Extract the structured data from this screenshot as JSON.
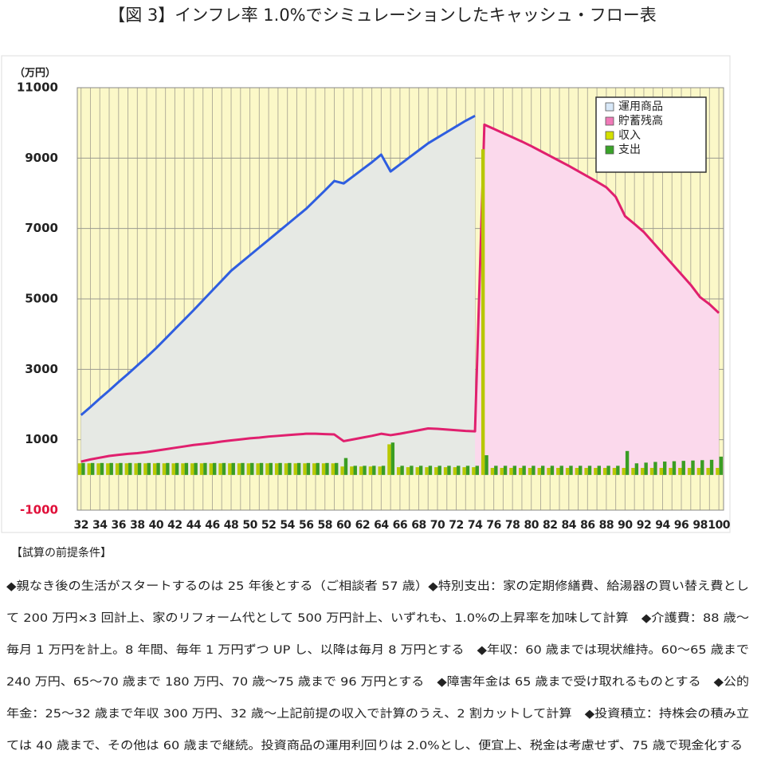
{
  "chart_data": {
    "type": "cashflow",
    "title": "【図 3】インフレ率 1.0%でシミュレーションしたキャッシュ・フロー表",
    "y_unit": "（万円）",
    "x": [
      32,
      33,
      34,
      35,
      36,
      37,
      38,
      39,
      40,
      41,
      42,
      43,
      44,
      45,
      46,
      47,
      48,
      49,
      50,
      51,
      52,
      53,
      54,
      55,
      56,
      57,
      58,
      59,
      60,
      61,
      62,
      63,
      64,
      65,
      66,
      67,
      68,
      69,
      70,
      71,
      72,
      73,
      74,
      75,
      76,
      77,
      78,
      79,
      80,
      81,
      82,
      83,
      84,
      85,
      86,
      87,
      88,
      89,
      90,
      91,
      92,
      93,
      94,
      95,
      96,
      97,
      98,
      99,
      100
    ],
    "xlim": [
      31.6,
      100.5
    ],
    "xticks": [
      32,
      34,
      36,
      38,
      40,
      42,
      44,
      46,
      48,
      50,
      52,
      54,
      56,
      58,
      60,
      62,
      64,
      66,
      68,
      70,
      72,
      74,
      76,
      78,
      80,
      82,
      84,
      86,
      88,
      90,
      92,
      94,
      96,
      98,
      100
    ],
    "ylim": [
      -1000,
      11000
    ],
    "yticks": [
      -1000,
      1000,
      3000,
      5000,
      7000,
      9000,
      11000
    ],
    "negative_tick_color": "#e0103a",
    "grid": true,
    "legend": "upper right",
    "series": [
      {
        "name": "運用商品",
        "kind": "line",
        "color": "#2f5ee0",
        "area_color": "#e6e9e4",
        "swatch": "#d8e8f8",
        "values": [
          1700,
          1930,
          2170,
          2400,
          2640,
          2870,
          3110,
          3350,
          3600,
          3870,
          4140,
          4410,
          4680,
          4960,
          5240,
          5520,
          5800,
          6020,
          6240,
          6460,
          6680,
          6900,
          7120,
          7340,
          7560,
          7820,
          8080,
          8350,
          8280,
          8480,
          8680,
          8880,
          9100,
          8620,
          8820,
          9020,
          9220,
          9420,
          9580,
          9740,
          9900,
          10060,
          10200,
          null,
          null,
          null,
          null,
          null,
          null,
          null,
          null,
          null,
          null,
          null,
          null,
          null,
          null,
          null,
          null,
          null,
          null,
          null,
          null,
          null,
          null,
          null,
          null,
          null,
          null
        ]
      },
      {
        "name": "貯蓄残高",
        "kind": "line",
        "color": "#e0206e",
        "area_color": "#fbd9ec",
        "swatch": "#f07ab8",
        "values": [
          380,
          440,
          490,
          540,
          570,
          600,
          620,
          650,
          690,
          730,
          770,
          810,
          850,
          880,
          910,
          950,
          980,
          1010,
          1040,
          1060,
          1090,
          1110,
          1130,
          1150,
          1170,
          1170,
          1160,
          1150,
          960,
          1010,
          1060,
          1110,
          1170,
          1130,
          1170,
          1220,
          1270,
          1320,
          1310,
          1290,
          1270,
          1250,
          1240,
          9950,
          9830,
          9710,
          9590,
          9470,
          9340,
          9200,
          9060,
          8920,
          8780,
          8630,
          8480,
          8330,
          8170,
          7900,
          7350,
          7130,
          6900,
          6600,
          6300,
          6000,
          5700,
          5400,
          5050,
          4850,
          4600
        ]
      },
      {
        "name": "収入",
        "kind": "bar",
        "color": "#b8c800",
        "swatch": "#d4e000",
        "values": [
          330,
          330,
          330,
          330,
          330,
          330,
          330,
          330,
          330,
          330,
          330,
          330,
          330,
          330,
          330,
          330,
          330,
          330,
          330,
          330,
          330,
          330,
          330,
          330,
          330,
          330,
          330,
          330,
          240,
          240,
          240,
          240,
          240,
          870,
          220,
          220,
          220,
          220,
          220,
          220,
          220,
          220,
          220,
          9250,
          200,
          200,
          200,
          200,
          200,
          200,
          200,
          200,
          200,
          200,
          200,
          200,
          200,
          200,
          200,
          200,
          200,
          200,
          200,
          200,
          200,
          200,
          200,
          200,
          200
        ]
      },
      {
        "name": "支出",
        "kind": "bar",
        "color": "#3a9d23",
        "swatch": "#3aa329",
        "values": [
          340,
          340,
          340,
          340,
          340,
          340,
          340,
          340,
          340,
          340,
          340,
          340,
          340,
          340,
          340,
          340,
          340,
          340,
          340,
          340,
          340,
          340,
          340,
          340,
          340,
          340,
          340,
          340,
          480,
          260,
          260,
          260,
          260,
          920,
          260,
          260,
          260,
          260,
          260,
          260,
          260,
          260,
          260,
          560,
          260,
          260,
          260,
          260,
          260,
          260,
          260,
          260,
          260,
          260,
          260,
          260,
          260,
          260,
          680,
          330,
          350,
          370,
          380,
          390,
          400,
          410,
          420,
          430,
          520
        ]
      }
    ]
  },
  "notes": {
    "heading": "【試算の前提条件】",
    "lines": [
      "◆親なき後の生活がスタートするのは 25 年後とする（ご相談者 57 歳）◆特別支出：家の定期修繕費、給湯器の買い替え費とし",
      "て 200 万円×3 回計上、家のリフォーム代として 500 万円計上、いずれも、1.0%の上昇率を加味して計算　◆介護費：88 歳～",
      "毎月 1 万円を計上。8 年間、毎年 1 万円ずつ UP し、以降は毎月 8 万円とする　◆年収：60 歳までは現状維持。60～65 歳まで",
      "240 万円、65～70 歳まで 180 万円、70 歳～75 歳まで 96 万円とする　◆障害年金は 65 歳まで受け取れるものとする　◆公的",
      "年金：25～32 歳まで年収 300 万円、32 歳～上記前提の収入で計算のうえ、2 割カットして計算　◆投資積立：持株会の積み立",
      "ては 40 歳まで、その他は 60 歳まで継続。投資商品の運用利回りは 2.0%とし、便宜上、税金は考慮せず、75 歳で現金化する"
    ]
  }
}
